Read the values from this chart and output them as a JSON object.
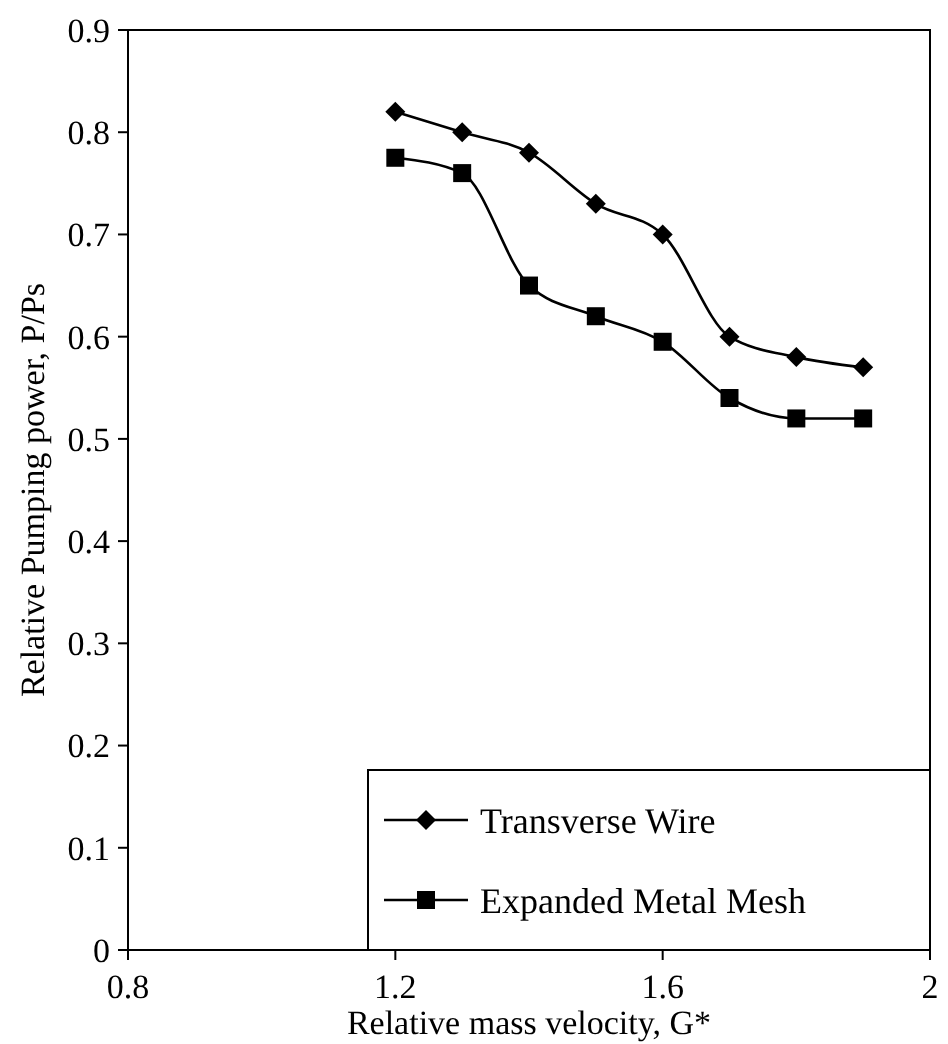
{
  "chart_data": {
    "type": "line",
    "xlabel": "Relative mass velocity, G*",
    "ylabel": "Relative Pumping power, P/Ps",
    "xlim": [
      0.8,
      2
    ],
    "xticks": [
      0.8,
      1.2,
      1.6,
      2
    ],
    "ylim": [
      0,
      0.9
    ],
    "yticks": [
      0,
      0.1,
      0.2,
      0.3,
      0.4,
      0.5,
      0.6,
      0.7,
      0.8,
      0.9
    ],
    "x": [
      1.2,
      1.3,
      1.4,
      1.5,
      1.6,
      1.7,
      1.8,
      1.9
    ],
    "grid": false,
    "legend": "bottom right",
    "line_style": "solid",
    "series": [
      {
        "name": "Transverse Wire",
        "color": "#000000",
        "marker": "diamond",
        "values": [
          0.82,
          0.8,
          0.78,
          0.73,
          0.7,
          0.6,
          0.58,
          0.57
        ]
      },
      {
        "name": "Expanded Metal Mesh",
        "color": "#000000",
        "marker": "square",
        "values": [
          0.775,
          0.76,
          0.65,
          0.62,
          0.595,
          0.54,
          0.52,
          0.52
        ]
      }
    ]
  }
}
